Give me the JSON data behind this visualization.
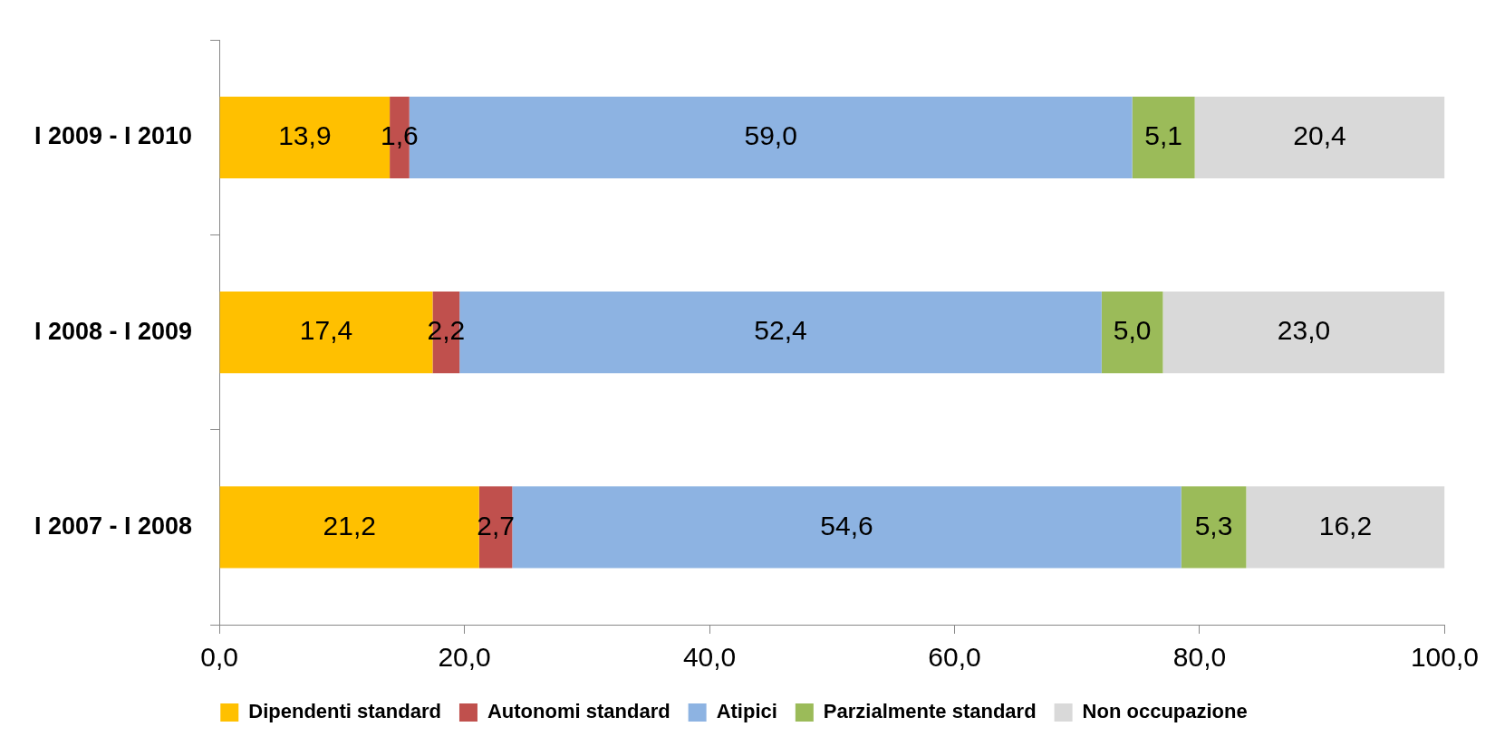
{
  "chart_data": {
    "type": "bar",
    "orientation": "horizontal",
    "stacked": true,
    "categories": [
      "I 2009 - I 2010",
      "I 2008 - I 2009",
      "I 2007 - I 2008"
    ],
    "series": [
      {
        "name": "Dipendenti standard",
        "color": "#ffc000",
        "values": [
          13.9,
          17.4,
          21.2
        ],
        "value_labels": [
          "13,9",
          "17,4",
          "21,2"
        ]
      },
      {
        "name": "Autonomi standard",
        "color": "#c0504d",
        "values": [
          1.6,
          2.2,
          2.7
        ],
        "value_labels": [
          "1,6",
          "2,2",
          "2,7"
        ]
      },
      {
        "name": "Atipici",
        "color": "#8db3e2",
        "values": [
          59.0,
          52.4,
          54.6
        ],
        "value_labels": [
          "59,0",
          "52,4",
          "54,6"
        ]
      },
      {
        "name": "Parzialmente standard",
        "color": "#9bbb59",
        "values": [
          5.1,
          5.0,
          5.3
        ],
        "value_labels": [
          "5,1",
          "5,0",
          "5,3"
        ]
      },
      {
        "name": "Non occupazione",
        "color": "#d9d9d9",
        "values": [
          20.4,
          23.0,
          16.2
        ],
        "value_labels": [
          "20,4",
          "23,0",
          "16,2"
        ]
      }
    ],
    "xlim": [
      0,
      100
    ],
    "xticks": [
      {
        "value": 0,
        "label": "0,0"
      },
      {
        "value": 20,
        "label": "20,0"
      },
      {
        "value": 40,
        "label": "40,0"
      },
      {
        "value": 60,
        "label": "60,0"
      },
      {
        "value": 80,
        "label": "80,0"
      },
      {
        "value": 100,
        "label": "100,0"
      }
    ],
    "grid": false,
    "legend": "bottom"
  }
}
